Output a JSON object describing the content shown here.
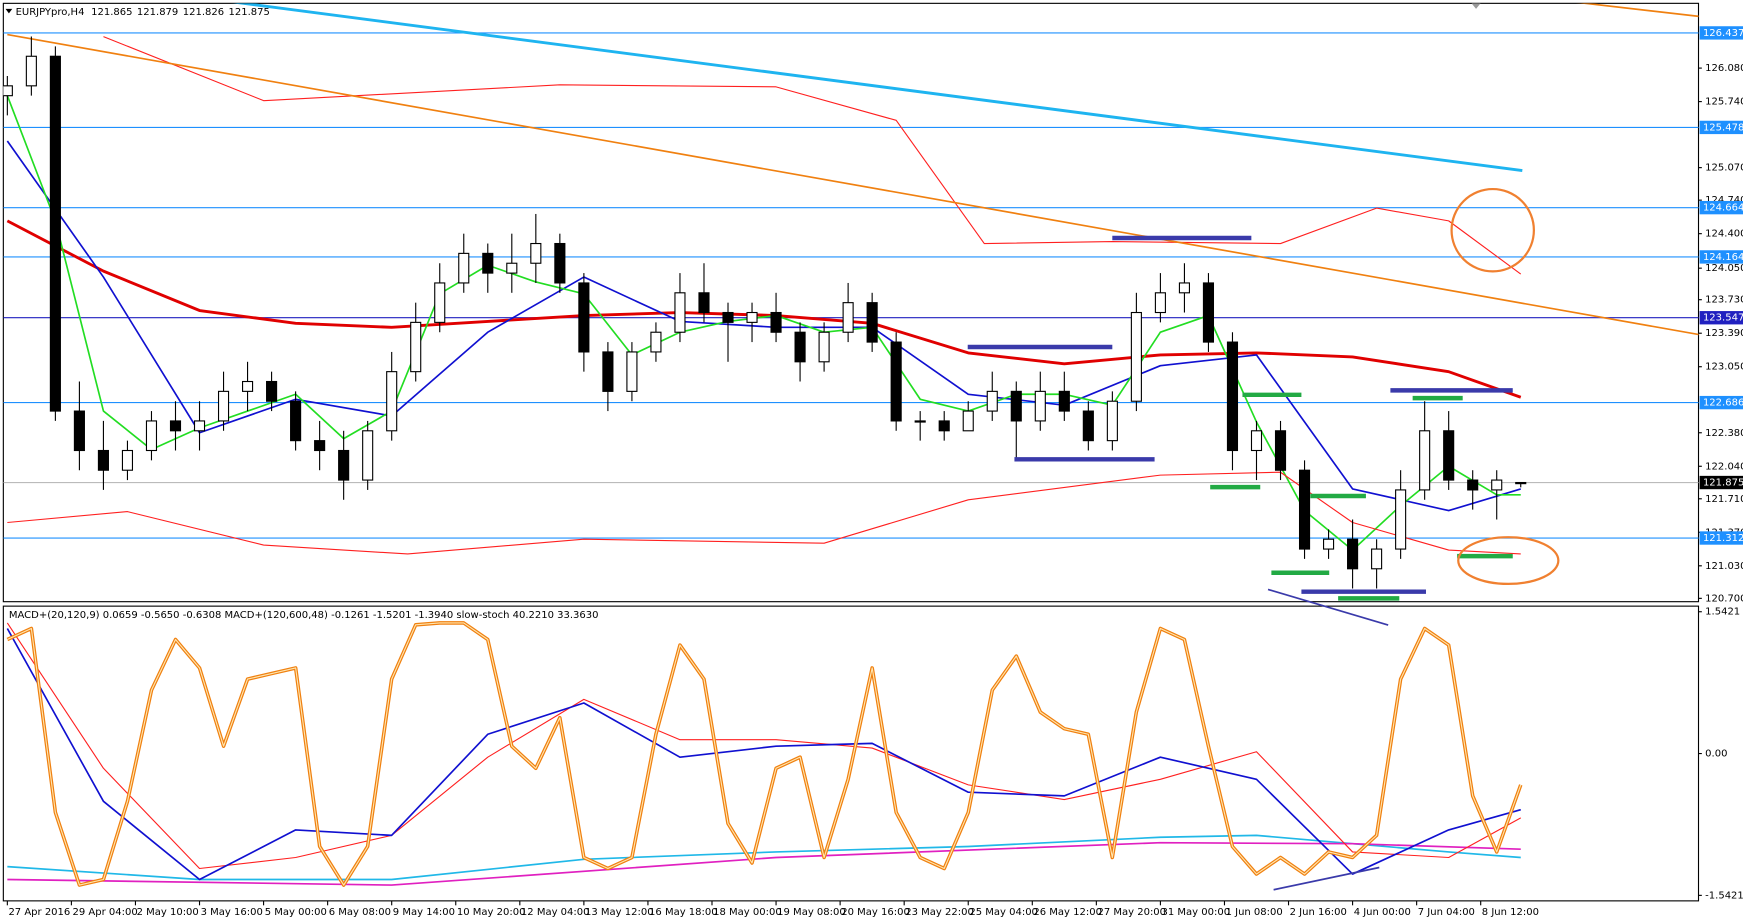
{
  "chart_data": [
    {
      "type": "candlestick",
      "title": "EURJPYpro,H4",
      "ylim": [
        120.666,
        126.737
      ],
      "xlim": [
        -0.5,
        211.2
      ],
      "yticks": [
        {
          "value": 126.08,
          "label": "126.080"
        },
        {
          "value": 125.74,
          "label": "125.740"
        },
        {
          "value": 125.07,
          "label": "125.070"
        },
        {
          "value": 124.74,
          "label": "124.740"
        },
        {
          "value": 124.4,
          "label": "124.400"
        },
        {
          "value": 124.05,
          "label": "124.050"
        },
        {
          "value": 123.73,
          "label": "123.730"
        },
        {
          "value": 123.39,
          "label": "123.390"
        },
        {
          "value": 123.05,
          "label": "123.050"
        },
        {
          "value": 122.38,
          "label": "122.380"
        },
        {
          "value": 122.04,
          "label": "122.040"
        },
        {
          "value": 121.71,
          "label": "121.710"
        },
        {
          "value": 121.37,
          "label": "121.370"
        },
        {
          "value": 121.03,
          "label": "121.030"
        },
        {
          "value": 120.7,
          "label": "120.700"
        }
      ],
      "levels": [
        {
          "value": 126.437,
          "color": "#1e90ff"
        },
        {
          "value": 125.478,
          "color": "#1e90ff"
        },
        {
          "value": 124.664,
          "color": "#1e90ff"
        },
        {
          "value": 124.164,
          "color": "#1e90ff"
        },
        {
          "value": 123.547,
          "color": "#2020c0"
        },
        {
          "value": 122.686,
          "color": "#1e90ff"
        },
        {
          "value": 121.312,
          "color": "#1e90ff"
        }
      ],
      "last_price": 121.875,
      "up_color": "#ffffff",
      "down_color": "#000000",
      "candles": {
        "x": [
          0,
          3,
          6,
          9,
          12,
          15,
          18,
          21,
          24,
          27,
          30,
          33,
          36,
          39,
          42,
          45,
          48,
          51,
          54,
          57,
          60,
          63,
          66,
          69,
          72,
          75,
          78,
          81,
          84,
          87,
          90,
          93,
          96,
          99,
          102,
          105,
          108,
          111,
          114,
          117,
          120,
          123,
          126,
          129,
          132,
          135,
          138,
          141,
          144,
          147,
          150,
          153,
          156,
          159,
          162,
          165,
          168,
          171,
          174,
          177,
          180,
          183,
          186,
          189
        ],
        "open": [
          125.8,
          125.9,
          126.2,
          122.6,
          122.2,
          122.0,
          122.2,
          122.5,
          122.4,
          122.5,
          122.8,
          122.9,
          122.7,
          122.3,
          122.2,
          121.9,
          122.4,
          123.0,
          123.5,
          123.9,
          124.2,
          124.0,
          124.1,
          124.3,
          123.9,
          123.2,
          122.8,
          123.2,
          123.4,
          123.8,
          123.6,
          123.5,
          123.6,
          123.4,
          123.1,
          123.4,
          123.7,
          123.3,
          122.5,
          122.5,
          122.4,
          122.6,
          122.8,
          122.5,
          122.8,
          122.6,
          122.3,
          122.7,
          123.6,
          123.8,
          123.9,
          123.3,
          122.2,
          122.4,
          122.0,
          121.2,
          121.3,
          121.0,
          121.2,
          121.8,
          122.4,
          121.9,
          121.8,
          121.865
        ],
        "high": [
          126.0,
          126.4,
          126.3,
          122.9,
          122.5,
          122.3,
          122.6,
          122.7,
          122.7,
          123.0,
          123.1,
          123.0,
          122.8,
          122.5,
          122.4,
          122.5,
          123.2,
          123.7,
          124.1,
          124.4,
          124.3,
          124.4,
          124.6,
          124.4,
          124.0,
          123.3,
          123.3,
          123.5,
          124.0,
          124.1,
          123.7,
          123.7,
          123.8,
          123.5,
          123.5,
          123.9,
          123.8,
          123.4,
          122.6,
          122.6,
          122.7,
          123.0,
          122.9,
          123.0,
          123.0,
          122.7,
          122.8,
          123.8,
          124.0,
          124.1,
          124.0,
          123.4,
          122.5,
          122.5,
          122.1,
          121.4,
          121.5,
          121.3,
          122.0,
          122.7,
          122.6,
          122.0,
          122.0,
          121.879
        ],
        "low": [
          125.6,
          125.8,
          122.5,
          122.0,
          121.8,
          121.9,
          122.1,
          122.2,
          122.2,
          122.4,
          122.6,
          122.6,
          122.2,
          122.0,
          121.7,
          121.8,
          122.3,
          122.9,
          123.4,
          123.8,
          123.8,
          123.8,
          123.9,
          123.8,
          123.0,
          122.6,
          122.7,
          123.1,
          123.3,
          123.5,
          123.1,
          123.3,
          123.3,
          122.9,
          123.0,
          123.3,
          123.2,
          122.4,
          122.3,
          122.3,
          122.4,
          122.5,
          122.1,
          122.4,
          122.5,
          122.2,
          122.2,
          122.6,
          123.5,
          123.6,
          123.2,
          122.0,
          121.9,
          121.9,
          121.1,
          121.1,
          120.8,
          120.8,
          121.1,
          121.7,
          121.8,
          121.6,
          121.5,
          121.826
        ],
        "close": [
          125.9,
          126.2,
          122.6,
          122.2,
          122.0,
          122.2,
          122.5,
          122.4,
          122.5,
          122.8,
          122.9,
          122.7,
          122.3,
          122.2,
          121.9,
          122.4,
          123.0,
          123.5,
          123.9,
          124.2,
          124.0,
          124.1,
          124.3,
          123.9,
          123.2,
          122.8,
          123.2,
          123.4,
          123.8,
          123.6,
          123.5,
          123.6,
          123.4,
          123.1,
          123.4,
          123.7,
          123.3,
          122.5,
          122.5,
          122.4,
          122.6,
          122.8,
          122.5,
          122.8,
          122.6,
          122.3,
          122.7,
          123.6,
          123.8,
          123.9,
          123.3,
          122.2,
          122.4,
          122.0,
          121.2,
          121.3,
          121.0,
          121.2,
          121.8,
          122.4,
          121.9,
          121.8,
          121.9,
          121.875
        ]
      },
      "series": [
        {
          "color": "#e00000",
          "style": "thick",
          "x": [
            0,
            12,
            24,
            36,
            48,
            60,
            72,
            84,
            96,
            108,
            120,
            132,
            144,
            156,
            168,
            180,
            189
          ],
          "values": [
            124.53,
            124.02,
            123.62,
            123.49,
            123.45,
            123.51,
            123.57,
            123.6,
            123.57,
            123.49,
            123.19,
            123.08,
            123.17,
            123.19,
            123.15,
            123.0,
            122.74
          ]
        },
        {
          "color": "#1010d0",
          "style": "normal",
          "x": [
            0,
            12,
            24,
            36,
            48,
            60,
            72,
            84,
            96,
            108,
            120,
            132,
            144,
            156,
            168,
            180,
            189
          ],
          "values": [
            125.34,
            123.96,
            122.38,
            122.72,
            122.55,
            123.4,
            123.96,
            123.51,
            123.45,
            123.45,
            122.77,
            122.66,
            123.06,
            123.17,
            121.81,
            121.59,
            121.81
          ]
        },
        {
          "color": "#22dd22",
          "style": "normal",
          "x": [
            0,
            6,
            12,
            18,
            24,
            30,
            36,
            42,
            48,
            54,
            60,
            66,
            72,
            78,
            84,
            90,
            96,
            102,
            108,
            114,
            120,
            126,
            132,
            138,
            144,
            150,
            156,
            162,
            168,
            174,
            180,
            186,
            189
          ],
          "values": [
            125.8,
            124.53,
            122.6,
            122.21,
            122.43,
            122.6,
            122.77,
            122.32,
            122.6,
            123.79,
            124.08,
            123.91,
            123.79,
            123.17,
            123.4,
            123.51,
            123.57,
            123.4,
            123.45,
            122.72,
            122.6,
            122.77,
            122.77,
            122.66,
            123.4,
            123.57,
            122.49,
            121.59,
            121.19,
            121.64,
            122.04,
            121.75,
            121.75
          ]
        },
        {
          "color": "#ff2020",
          "style": "thin",
          "x": [
            12,
            32,
            69,
            96,
            111,
            122,
            138,
            159,
            171,
            180,
            189
          ],
          "values": [
            126.4,
            125.75,
            125.91,
            125.89,
            125.55,
            124.3,
            124.32,
            124.3,
            124.66,
            124.53,
            123.99
          ]
        },
        {
          "color": "#ff2020",
          "style": "thin",
          "x": [
            0,
            15,
            32,
            50,
            72,
            102,
            120,
            144,
            159,
            168,
            180,
            189
          ],
          "values": [
            121.47,
            121.58,
            121.24,
            121.15,
            121.3,
            121.26,
            121.7,
            121.95,
            121.98,
            121.47,
            121.19,
            121.15
          ]
        },
        {
          "color": "#f08010",
          "style": "normal",
          "x": [
            0,
            211.7
          ],
          "values": [
            126.42,
            123.37
          ]
        },
        {
          "color": "#f08010",
          "style": "normal",
          "x": [
            194.7,
            211.7
          ],
          "values": [
            126.76,
            126.6
          ]
        },
        {
          "color": "#1eb4f0",
          "style": "thick",
          "x": [
            27.4,
            189.2
          ],
          "values": [
            126.76,
            125.04
          ]
        }
      ]
    },
    {
      "type": "line",
      "title": "MACD+(20,120,9) 0.0659 -0.5650 -0.6308  MACD+(120,600,48) -0.1261 -1.5201 -1.3940  slow-stoch 40.2210 33.3630",
      "ylim": [
        -1.602,
        1.603
      ],
      "xlim": [
        -0.5,
        211.2
      ],
      "yticks": [
        1.5421,
        {
          "value": 0,
          "label": "0.00"
        },
        -1.5421
      ],
      "xticks": [
        {
          "value": 0,
          "label": "27 Apr 2016"
        },
        {
          "value": 8,
          "label": "29 Apr 04:00"
        },
        {
          "value": 16,
          "label": "2 May 10:00"
        },
        {
          "value": 24,
          "label": "3 May 16:00"
        },
        {
          "value": 32,
          "label": "5 May 00:00"
        },
        {
          "value": 40,
          "label": "6 May 08:00"
        },
        {
          "value": 48,
          "label": "9 May 14:00"
        },
        {
          "value": 56,
          "label": "10 May 20:00"
        },
        {
          "value": 64,
          "label": "12 May 04:00"
        },
        {
          "value": 72,
          "label": "13 May 12:00"
        },
        {
          "value": 80,
          "label": "16 May 18:00"
        },
        {
          "value": 88,
          "label": "18 May 00:00"
        },
        {
          "value": 96,
          "label": "19 May 08:00"
        },
        {
          "value": 104,
          "label": "20 May 16:00"
        },
        {
          "value": 112,
          "label": "23 May 22:00"
        },
        {
          "value": 120,
          "label": "25 May 04:00"
        },
        {
          "value": 128,
          "label": "26 May 12:00"
        },
        {
          "value": 136,
          "label": "27 May 20:00"
        },
        {
          "value": 144,
          "label": "31 May 00:00"
        },
        {
          "value": 152,
          "label": "1 Jun 08:00"
        },
        {
          "value": 160,
          "label": "2 Jun 16:00"
        },
        {
          "value": 168,
          "label": "4 Jun 00:00"
        },
        {
          "value": 176,
          "label": "7 Jun 04:00"
        },
        {
          "value": 184,
          "label": "8 Jun 12:00"
        }
      ],
      "series": [
        {
          "color": "#20b8e8",
          "style": "normal",
          "x": [
            0,
            24,
            48,
            72,
            96,
            120,
            144,
            156,
            168,
            180,
            189
          ],
          "values": [
            -1.23,
            -1.37,
            -1.37,
            -1.15,
            -1.07,
            -1.01,
            -0.91,
            -0.89,
            -0.98,
            -1.07,
            -1.13
          ]
        },
        {
          "color": "#e020c0",
          "style": "normal",
          "x": [
            0,
            48,
            96,
            144,
            168,
            189
          ],
          "values": [
            -1.37,
            -1.43,
            -1.13,
            -0.97,
            -0.98,
            -1.04
          ]
        },
        {
          "color": "#ff2020",
          "style": "thin",
          "x": [
            0,
            12,
            24,
            36,
            48,
            60,
            72,
            84,
            96,
            108,
            120,
            132,
            144,
            156,
            168,
            180,
            189
          ],
          "values": [
            1.42,
            -0.16,
            -1.25,
            -1.13,
            -0.89,
            -0.04,
            0.59,
            0.15,
            0.15,
            0.06,
            -0.34,
            -0.5,
            -0.28,
            0.02,
            -1.07,
            -1.13,
            -0.7
          ]
        },
        {
          "color": "#1010d0",
          "style": "normal",
          "x": [
            0,
            12,
            24,
            36,
            48,
            60,
            72,
            84,
            96,
            108,
            120,
            132,
            144,
            156,
            168,
            180,
            189
          ],
          "values": [
            1.36,
            -0.52,
            -1.37,
            -0.83,
            -0.89,
            0.21,
            0.55,
            -0.04,
            0.08,
            0.11,
            -0.42,
            -0.46,
            -0.04,
            -0.28,
            -1.31,
            -0.83,
            -0.61
          ]
        },
        {
          "color": "#f08010",
          "style": "double",
          "x": [
            0,
            3,
            6,
            9,
            12,
            15,
            18,
            21,
            24,
            27,
            30,
            33,
            36,
            39,
            42,
            45,
            48,
            51,
            54,
            57,
            60,
            63,
            66,
            69,
            72,
            75,
            78,
            81,
            84,
            87,
            90,
            93,
            96,
            99,
            102,
            105,
            108,
            111,
            114,
            117,
            120,
            123,
            126,
            129,
            132,
            135,
            138,
            141,
            144,
            147,
            150,
            153,
            156,
            159,
            162,
            165,
            168,
            171,
            174,
            177,
            180,
            183,
            186,
            189
          ],
          "values": [
            1.24,
            1.36,
            -0.64,
            -1.43,
            -1.37,
            -0.52,
            0.69,
            1.24,
            0.93,
            0.08,
            0.81,
            0.87,
            0.93,
            -1.01,
            -1.43,
            -1.01,
            0.81,
            1.4,
            1.42,
            1.42,
            1.24,
            0.08,
            -0.16,
            0.39,
            -1.13,
            -1.25,
            -1.13,
            0.21,
            1.18,
            0.81,
            -0.76,
            -1.19,
            -0.16,
            -0.04,
            -1.13,
            -0.28,
            0.93,
            -0.64,
            -1.13,
            -1.25,
            -0.64,
            0.69,
            1.06,
            0.45,
            0.27,
            0.21,
            -1.13,
            0.45,
            1.36,
            1.24,
            0.08,
            -1.01,
            -1.31,
            -1.13,
            -1.31,
            -1.07,
            -1.13,
            -0.89,
            0.81,
            1.36,
            1.18,
            -0.46,
            -1.07,
            -0.34
          ]
        }
      ]
    }
  ]
}
